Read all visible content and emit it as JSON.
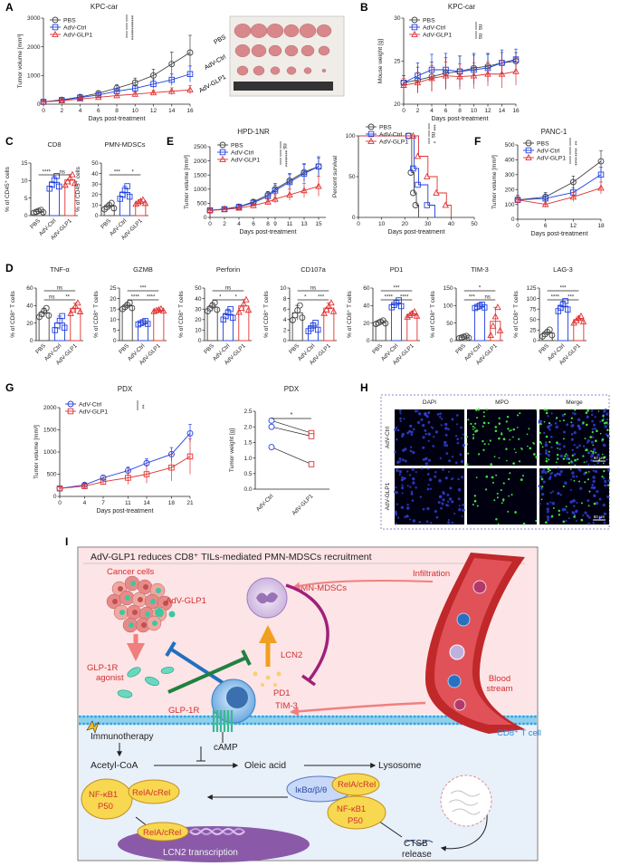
{
  "colors": {
    "pbs": "#444444",
    "ctrl": "#2040e0",
    "glp1": "#e03030",
    "ink": "#222222"
  },
  "panelA": {
    "letter": "A",
    "title": "KPC-car",
    "xlabel": "Days post-treatment",
    "ylabel": "Tumor volume [mm³]",
    "legend": [
      "PBS",
      "AdV-Ctrl",
      "AdV-GLP1"
    ],
    "photo_labels": [
      "PBS",
      "AdV-Ctrl",
      "AdV-GLP1"
    ],
    "sig": [
      "****",
      "****",
      "****"
    ],
    "chart_data": {
      "type": "line",
      "x": [
        0,
        2,
        4,
        6,
        8,
        10,
        12,
        14,
        16
      ],
      "ylim": [
        0,
        3000
      ],
      "yticks": [
        0,
        1000,
        2000,
        3000
      ],
      "series": [
        {
          "name": "PBS",
          "values": [
            80,
            150,
            250,
            380,
            560,
            750,
            1000,
            1400,
            1800
          ],
          "err": [
            20,
            40,
            60,
            80,
            120,
            160,
            220,
            420,
            600
          ]
        },
        {
          "name": "AdV-Ctrl",
          "values": [
            80,
            140,
            230,
            320,
            450,
            550,
            700,
            850,
            1050
          ],
          "err": [
            20,
            30,
            50,
            60,
            80,
            100,
            150,
            200,
            280
          ]
        },
        {
          "name": "AdV-GLP1",
          "values": [
            80,
            120,
            180,
            240,
            300,
            350,
            400,
            450,
            500
          ],
          "err": [
            20,
            25,
            30,
            40,
            60,
            70,
            80,
            120,
            150
          ]
        }
      ]
    }
  },
  "panelB": {
    "letter": "B",
    "title": "KPC-car",
    "xlabel": "Days post-treatment",
    "ylabel": "Mouse weight [g]",
    "legend": [
      "PBS",
      "AdV-Ctrl",
      "AdV-GLP1"
    ],
    "sig": [
      "ns",
      "ns"
    ],
    "chart_data": {
      "type": "line",
      "x": [
        0,
        2,
        4,
        6,
        8,
        10,
        12,
        14,
        16
      ],
      "ylim": [
        20,
        30
      ],
      "yticks": [
        20,
        25,
        30
      ],
      "series": [
        {
          "name": "PBS",
          "values": [
            22.5,
            22.8,
            23.2,
            23.6,
            23.8,
            24.2,
            24.4,
            24.8,
            25.0
          ],
          "err": [
            0.8,
            1.5,
            1.7,
            1.8,
            1.8,
            1.7,
            1.5,
            1.2,
            1.0
          ]
        },
        {
          "name": "AdV-Ctrl",
          "values": [
            22.5,
            23.3,
            24.0,
            24.0,
            23.8,
            24.0,
            24.2,
            24.8,
            25.2
          ],
          "err": [
            0.8,
            1.5,
            1.8,
            1.9,
            1.8,
            1.7,
            1.6,
            1.5,
            1.2
          ]
        },
        {
          "name": "AdV-GLP1",
          "values": [
            22.2,
            22.5,
            23.0,
            23.3,
            23.2,
            23.3,
            23.5,
            23.5,
            23.8
          ],
          "err": [
            0.8,
            1.2,
            1.5,
            1.6,
            1.5,
            1.5,
            1.4,
            1.6,
            1.6
          ]
        }
      ]
    }
  },
  "panelC": {
    "letter": "C",
    "charts": [
      {
        "title": "CD8",
        "ylabel": "% of CD45⁺ cells",
        "categories": [
          "PBS",
          "AdV-Ctrl",
          "AdV-GLP1"
        ],
        "values": [
          1.2,
          9.5,
          10.2
        ],
        "err": [
          0.4,
          1.8,
          1.5
        ],
        "ylim": [
          0,
          15
        ],
        "yticks": [
          0,
          5,
          10,
          15
        ],
        "sig": [
          {
            "a": 0,
            "b": 1,
            "t": "****"
          },
          {
            "a": 1,
            "b": 2,
            "t": "ns"
          }
        ]
      },
      {
        "title": "PMN-MDSCs",
        "ylabel": "% of CD45⁺ cells",
        "categories": [
          "PBS",
          "AdV-Ctrl",
          "AdV-GLP1"
        ],
        "values": [
          9,
          22,
          13
        ],
        "err": [
          3,
          6,
          2
        ],
        "ylim": [
          0,
          50
        ],
        "yticks": [
          0,
          10,
          20,
          30,
          40,
          50
        ],
        "sig": [
          {
            "a": 0,
            "b": 1,
            "t": "***"
          },
          {
            "a": 1,
            "b": 2,
            "t": "*"
          }
        ]
      }
    ]
  },
  "panelE": {
    "letter": "E",
    "title": "HPD-1NR",
    "xlabel": "Days post-treatment",
    "ylabel": "Tumor volume [mm³]",
    "legend": [
      "PBS",
      "AdV-Ctrl",
      "AdV-GLP1"
    ],
    "sig": [
      "ns",
      "****",
      "****"
    ],
    "chart_data": {
      "type": "line",
      "x": [
        0,
        2,
        4,
        6,
        8,
        9,
        11,
        13,
        15
      ],
      "ylim": [
        0,
        2500
      ],
      "yticks": [
        0,
        500,
        1000,
        1500,
        2000,
        2500
      ],
      "series": [
        {
          "name": "PBS",
          "values": [
            250,
            300,
            380,
            550,
            800,
            1000,
            1300,
            1600,
            1800
          ],
          "err": [
            30,
            40,
            60,
            80,
            120,
            200,
            250,
            300,
            300
          ]
        },
        {
          "name": "AdV-Ctrl",
          "values": [
            250,
            290,
            370,
            520,
            750,
            950,
            1250,
            1550,
            1800
          ],
          "err": [
            30,
            40,
            60,
            80,
            150,
            200,
            280,
            320,
            350
          ]
        },
        {
          "name": "AdV-GLP1",
          "values": [
            250,
            280,
            330,
            420,
            550,
            650,
            800,
            950,
            1100
          ],
          "err": [
            30,
            40,
            50,
            70,
            100,
            150,
            200,
            250,
            350
          ]
        }
      ]
    }
  },
  "panelSurv": {
    "xlabel": "Days post-treatment",
    "ylabel": "Percent survival",
    "legend": [
      "PBS",
      "AdV-Ctrl",
      "AdV-GLP1"
    ],
    "sig": [
      "***",
      "ns",
      "*"
    ],
    "chart_data": {
      "type": "line",
      "xlim": [
        0,
        50
      ],
      "ylim": [
        0,
        100
      ],
      "xticks": [
        0,
        10,
        20,
        30,
        40,
        50
      ],
      "yticks": [
        0,
        50,
        100
      ],
      "series": [
        {
          "name": "PBS",
          "x": [
            0,
            22,
            23,
            24,
            25,
            26
          ],
          "y": [
            100,
            100,
            55,
            30,
            15,
            0
          ]
        },
        {
          "name": "AdV-Ctrl",
          "x": [
            0,
            22,
            24,
            26,
            30,
            33
          ],
          "y": [
            100,
            100,
            60,
            40,
            15,
            0
          ]
        },
        {
          "name": "AdV-GLP1",
          "x": [
            0,
            24,
            26,
            30,
            34,
            38,
            40
          ],
          "y": [
            100,
            100,
            75,
            50,
            30,
            15,
            0
          ]
        }
      ]
    }
  },
  "panelF": {
    "letter": "F",
    "title": "PANC-1",
    "xlabel": "Days post-treatment",
    "ylabel": "Tumor volume [mm³]",
    "legend": [
      "PBS",
      "AdV-Ctrl",
      "AdV-GLP1"
    ],
    "sig": [
      "**",
      "****",
      "****"
    ],
    "chart_data": {
      "type": "line",
      "x": [
        0,
        6,
        12,
        18
      ],
      "ylim": [
        0,
        500
      ],
      "yticks": [
        0,
        100,
        200,
        300,
        400,
        500
      ],
      "series": [
        {
          "name": "PBS",
          "values": [
            130,
            150,
            250,
            390
          ],
          "err": [
            30,
            30,
            40,
            70
          ]
        },
        {
          "name": "AdV-Ctrl",
          "values": [
            130,
            140,
            180,
            300
          ],
          "err": [
            30,
            30,
            30,
            50
          ]
        },
        {
          "name": "AdV-GLP1",
          "values": [
            130,
            100,
            150,
            210
          ],
          "err": [
            20,
            20,
            30,
            40
          ]
        }
      ]
    }
  },
  "panelD": {
    "letter": "D",
    "charts": [
      {
        "title": "TNF-α",
        "ylabel": "% of CD8⁺ T cells",
        "ylim": [
          0,
          60
        ],
        "yticks": [
          0,
          20,
          40,
          60
        ],
        "values": [
          32,
          20,
          37
        ],
        "err": [
          5,
          8,
          6
        ],
        "sig": [
          {
            "a": 0,
            "b": 2,
            "t": "ns"
          },
          {
            "a": 0,
            "b": 1,
            "t": "ns"
          },
          {
            "a": 1,
            "b": 2,
            "t": "**"
          }
        ]
      },
      {
        "title": "GZMB",
        "ylabel": "% of CD8⁺ T cells",
        "ylim": [
          0,
          25
        ],
        "yticks": [
          0,
          5,
          10,
          15,
          20,
          25
        ],
        "values": [
          16.5,
          8.5,
          14.5
        ],
        "err": [
          1.5,
          0.8,
          0.6
        ],
        "sig": [
          {
            "a": 0,
            "b": 2,
            "t": "***"
          },
          {
            "a": 0,
            "b": 1,
            "t": "****"
          },
          {
            "a": 1,
            "b": 2,
            "t": "****"
          }
        ]
      },
      {
        "title": "Perforin",
        "ylabel": "% of CD8⁺ T cells",
        "ylim": [
          0,
          50
        ],
        "yticks": [
          0,
          10,
          20,
          30,
          40,
          50
        ],
        "values": [
          32,
          25,
          33
        ],
        "err": [
          4,
          5,
          6
        ],
        "sig": [
          {
            "a": 0,
            "b": 2,
            "t": "ns"
          },
          {
            "a": 0,
            "b": 1,
            "t": "*"
          },
          {
            "a": 1,
            "b": 2,
            "t": "*"
          }
        ]
      },
      {
        "title": "CD107a",
        "ylabel": "% of CD8⁺ T cells",
        "ylim": [
          0,
          10
        ],
        "yticks": [
          0,
          2,
          4,
          6,
          8,
          10
        ],
        "values": [
          5.3,
          2.6,
          6.2
        ],
        "err": [
          1.4,
          0.8,
          1.0
        ],
        "sig": [
          {
            "a": 0,
            "b": 2,
            "t": "ns"
          },
          {
            "a": 0,
            "b": 1,
            "t": "*"
          },
          {
            "a": 1,
            "b": 2,
            "t": "***"
          }
        ]
      },
      {
        "title": "PD1",
        "ylabel": "% of CD8⁺ T cells",
        "ylim": [
          0,
          60
        ],
        "yticks": [
          0,
          20,
          40,
          60
        ],
        "values": [
          21,
          42,
          30
        ],
        "err": [
          2,
          4,
          3
        ],
        "sig": [
          {
            "a": 0,
            "b": 2,
            "t": "***"
          },
          {
            "a": 0,
            "b": 1,
            "t": "****"
          },
          {
            "a": 1,
            "b": 2,
            "t": "****"
          }
        ]
      },
      {
        "title": "TIM-3",
        "ylabel": "% of CD8⁺ T cells",
        "ylim": [
          0,
          150
        ],
        "yticks": [
          0,
          50,
          100,
          150
        ],
        "values": [
          10,
          98,
          55
        ],
        "err": [
          3,
          5,
          40
        ],
        "sig": [
          {
            "a": 0,
            "b": 2,
            "t": "*"
          },
          {
            "a": 0,
            "b": 1,
            "t": "***"
          },
          {
            "a": 1,
            "b": 2,
            "t": "ns"
          }
        ]
      },
      {
        "title": "LAG-3",
        "ylabel": "% of CD8⁺ T cells",
        "ylim": [
          0,
          125
        ],
        "yticks": [
          0,
          25,
          50,
          75,
          100,
          125
        ],
        "values": [
          18,
          82,
          50
        ],
        "err": [
          8,
          12,
          8
        ],
        "sig": [
          {
            "a": 0,
            "b": 2,
            "t": "***"
          },
          {
            "a": 0,
            "b": 1,
            "t": "****"
          },
          {
            "a": 1,
            "b": 2,
            "t": "***"
          }
        ]
      }
    ],
    "categories": [
      "PBS",
      "AdV-Ctrl",
      "AdV-GLP1"
    ]
  },
  "panelG": {
    "letter": "G",
    "title": "PDX",
    "xlabel": "Days post-treatment",
    "ylabel": "Tumor volume [mm³]",
    "legend": [
      "AdV-Ctrl",
      "AdV-GLP1"
    ],
    "sig": "**",
    "chart_data": {
      "type": "line",
      "x": [
        0,
        4,
        7,
        11,
        14,
        18,
        21
      ],
      "ylim": [
        0,
        2000
      ],
      "yticks": [
        0,
        500,
        1000,
        1500,
        2000
      ],
      "series": [
        {
          "name": "AdV-Ctrl",
          "values": [
            180,
            260,
            420,
            580,
            750,
            950,
            1420
          ],
          "err": [
            30,
            40,
            60,
            80,
            100,
            150,
            200
          ]
        },
        {
          "name": "AdV-GLP1",
          "values": [
            180,
            230,
            330,
            420,
            500,
            650,
            900
          ],
          "err": [
            30,
            40,
            60,
            150,
            200,
            300,
            400
          ]
        }
      ]
    }
  },
  "panelG2": {
    "title": "PDX",
    "ylabel": "Tumor weight [g]",
    "categories": [
      "AdV-Ctrl",
      "AdV-GLP1"
    ],
    "sig": "*",
    "chart_data": {
      "type": "scatter",
      "ylim": [
        0,
        2.5
      ],
      "yticks": [
        0,
        0.5,
        1.0,
        1.5,
        2.0,
        2.5
      ],
      "pairs": [
        [
          2.2,
          1.8
        ],
        [
          2.0,
          1.7
        ],
        [
          1.35,
          0.8
        ]
      ]
    }
  },
  "panelH": {
    "letter": "H",
    "columns": [
      "DAPI",
      "MPO",
      "Merge"
    ],
    "rows": [
      "AdV-Ctrl",
      "AdV-GLP1"
    ],
    "scale": "50 μm"
  },
  "panelI": {
    "letter": "I",
    "title": "AdV-GLP1 reduces CD8⁺ TILs-mediated PMN-MDSCs recruitment",
    "labels": {
      "cancer": "Cancer cells",
      "advglp1": "AdV-GLP1",
      "pmn": "PMN-MDSCs",
      "infiltration": "Infiltration",
      "glp1r_agonist": "GLP-1R agonist",
      "lcn2": "LCN2",
      "pd1": "PD1",
      "tim3": "TIM-3",
      "glp1r": "GLP-1R",
      "blood": "Blood stream",
      "cd8": "CD8⁺ T cell",
      "immuno": "Immunotherapy",
      "camp": "cAMP",
      "acetyl": "Acetyl-CoA",
      "oleic": "Oleic acid",
      "lysosome": "Lysosome",
      "nfkb_a": "NF-κB1",
      "p50_a": "P50",
      "rela_a": "RelA/cRel",
      "ikb": "IκBα/β/θ",
      "rela_b": "RelA/cRel",
      "nfkb_b": "NF-κB1",
      "p50_b": "P50",
      "rela_c": "RelA/cRel",
      "lcn2_tx": "LCN2 transcription",
      "ctsb": "CTSB",
      "release": "release"
    }
  }
}
